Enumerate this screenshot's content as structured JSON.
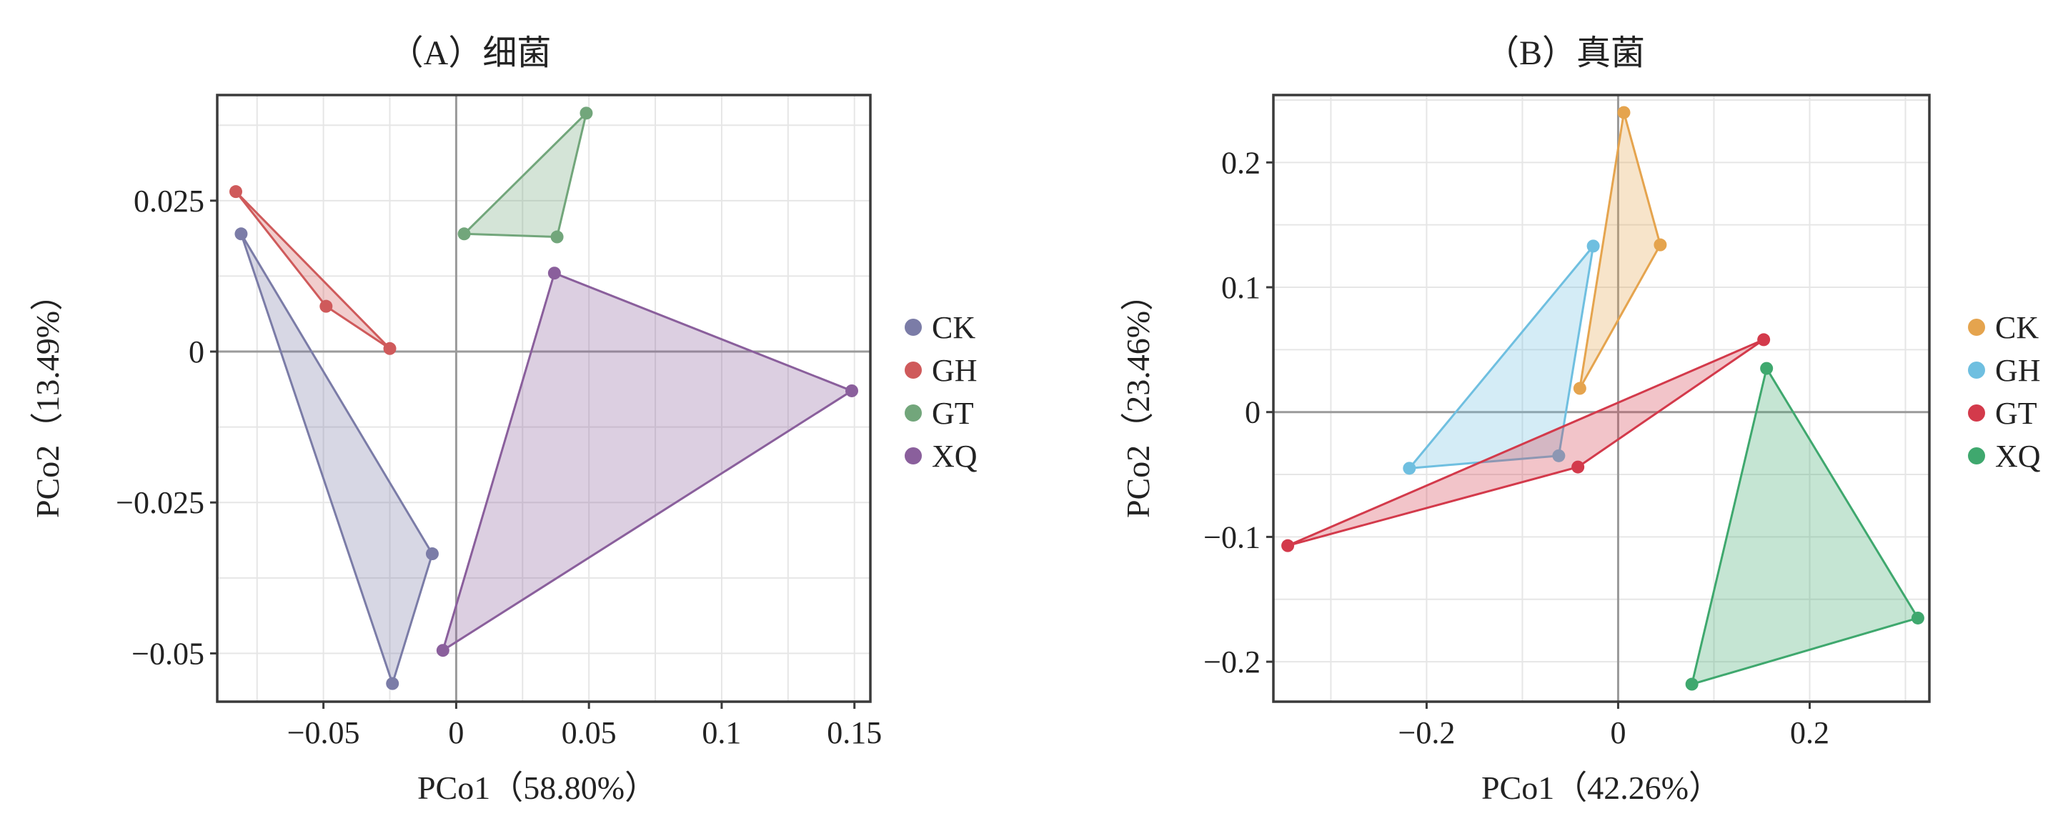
{
  "chart_data": [
    {
      "id": "A",
      "type": "scatter",
      "title": "（A）细菌",
      "xlabel": "PCo1（58.80%）",
      "ylabel": "PCo2（13.49%）",
      "xlim": [
        -0.09,
        0.156
      ],
      "ylim": [
        -0.058,
        0.0425
      ],
      "xticks": [
        -0.05,
        0,
        0.05,
        0.1,
        0.15
      ],
      "xtick_labels": [
        "−0.05",
        "0",
        "0.05",
        "0.1",
        "0.15"
      ],
      "yticks": [
        -0.05,
        -0.025,
        0,
        0.025
      ],
      "ytick_labels": [
        "−0.05",
        "−0.025",
        "0",
        "0.025"
      ],
      "grid": true,
      "zero_lines": true,
      "legend_position": "right",
      "series": [
        {
          "name": "CK",
          "color": "#7b7ca7",
          "points": [
            [
              -0.081,
              0.0195
            ],
            [
              -0.009,
              -0.0335
            ],
            [
              -0.024,
              -0.055
            ]
          ]
        },
        {
          "name": "GH",
          "color": "#cf5a5b",
          "points": [
            [
              -0.083,
              0.0265
            ],
            [
              -0.049,
              0.0075
            ],
            [
              -0.025,
              0.0005
            ]
          ]
        },
        {
          "name": "GT",
          "color": "#72a67b",
          "points": [
            [
              0.049,
              0.0395
            ],
            [
              0.003,
              0.0195
            ],
            [
              0.038,
              0.019
            ]
          ]
        },
        {
          "name": "XQ",
          "color": "#8a5f9c",
          "points": [
            [
              0.037,
              0.013
            ],
            [
              0.149,
              -0.0065
            ],
            [
              -0.005,
              -0.0495
            ]
          ]
        }
      ]
    },
    {
      "id": "B",
      "type": "scatter",
      "title": "（B）真菌",
      "xlabel": "PCo1（42.26%）",
      "ylabel": "PCo2（23.46%）",
      "xlim": [
        -0.36,
        0.325
      ],
      "ylim": [
        -0.232,
        0.254
      ],
      "xticks": [
        -0.2,
        0,
        0.2
      ],
      "xtick_labels": [
        "−0.2",
        "0",
        "0.2"
      ],
      "yticks": [
        -0.2,
        -0.1,
        0,
        0.1,
        0.2
      ],
      "ytick_labels": [
        "−0.2",
        "−0.1",
        "0",
        "0.1",
        "0.2"
      ],
      "grid": true,
      "zero_lines": true,
      "legend_position": "right",
      "series": [
        {
          "name": "CK",
          "color": "#e5a44e",
          "points": [
            [
              0.006,
              0.24
            ],
            [
              0.044,
              0.134
            ],
            [
              -0.04,
              0.019
            ]
          ]
        },
        {
          "name": "GH",
          "color": "#6fbfe0",
          "points": [
            [
              -0.026,
              0.133
            ],
            [
              -0.218,
              -0.045
            ],
            [
              -0.062,
              -0.035
            ]
          ]
        },
        {
          "name": "GT",
          "color": "#d33a4b",
          "points": [
            [
              0.152,
              0.058
            ],
            [
              -0.042,
              -0.044
            ],
            [
              -0.345,
              -0.107
            ]
          ]
        },
        {
          "name": "XQ",
          "color": "#3fa86e",
          "points": [
            [
              0.155,
              0.035
            ],
            [
              0.313,
              -0.165
            ],
            [
              0.077,
              -0.218
            ]
          ]
        }
      ]
    }
  ]
}
